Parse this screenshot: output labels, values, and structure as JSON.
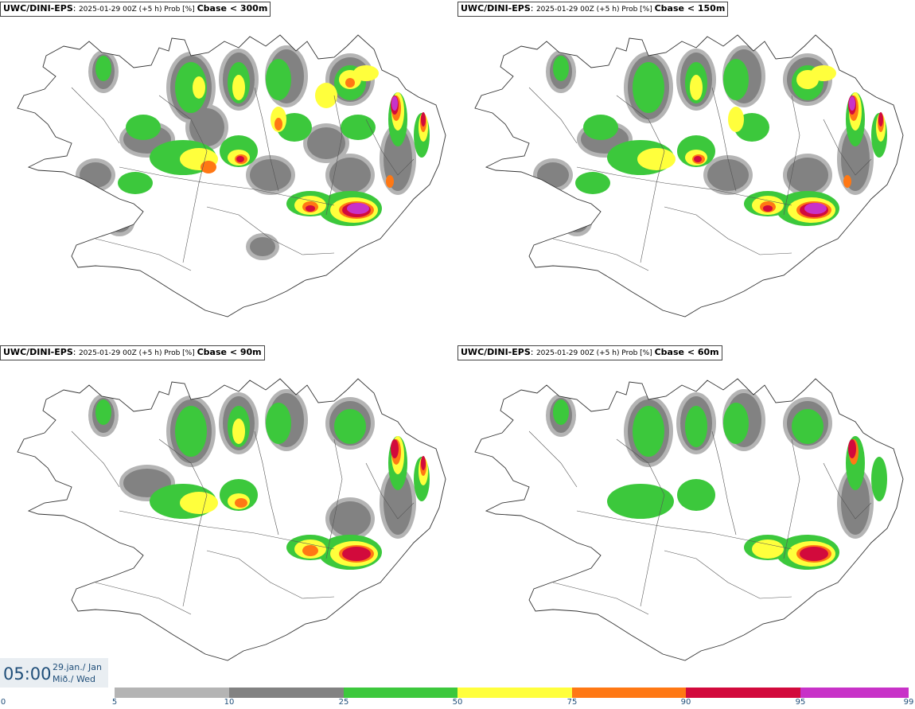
{
  "panels": [
    {
      "model": "UWC/DINI-EPS",
      "run": "2025-01-29 00Z (+5 h) Prob [%]",
      "var": "Cbase < 300m",
      "level": 4
    },
    {
      "model": "UWC/DINI-EPS",
      "run": "2025-01-29 00Z (+5 h) Prob [%]",
      "var": "Cbase < 150m",
      "level": 3
    },
    {
      "model": "UWC/DINI-EPS",
      "run": "2025-01-29 00Z (+5 h) Prob [%]",
      "var": "Cbase < 90m",
      "level": 2
    },
    {
      "model": "UWC/DINI-EPS",
      "run": "2025-01-29 00Z (+5 h) Prob [%]",
      "var": "Cbase < 60m",
      "level": 1
    }
  ],
  "time": {
    "clock": "05:00",
    "date_line1": "29.jan./ Jan",
    "date_line2": "Mið./ Wed"
  },
  "legend": {
    "ticks": [
      "0",
      "5",
      "10",
      "25",
      "50",
      "75",
      "90",
      "95",
      "99"
    ],
    "colors": [
      "#ffffff",
      "#b4b4b4",
      "#828282",
      "#3cc83c",
      "#ffff3c",
      "#ff7814",
      "#d20a3c",
      "#c832c8",
      "#f0b4f0"
    ]
  }
}
